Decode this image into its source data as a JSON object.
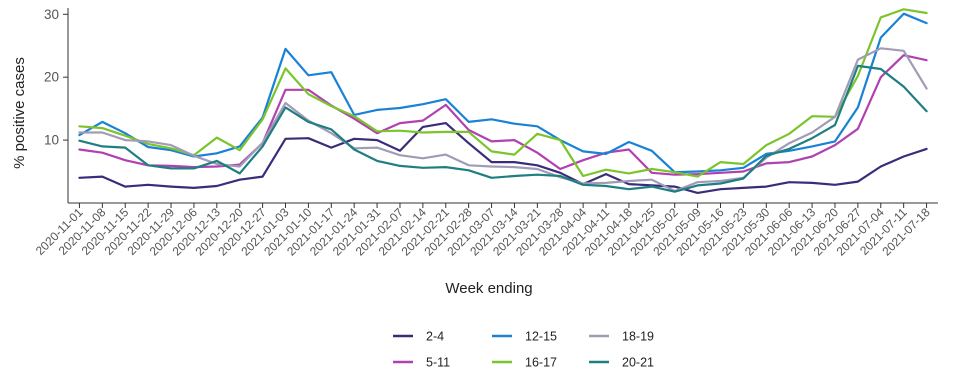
{
  "chart_data": {
    "type": "line",
    "xlabel": "Week ending",
    "ylabel": "% positive cases",
    "ylim": [
      0,
      31
    ],
    "yticks": [
      10,
      20,
      30
    ],
    "grid": false,
    "legend_position": "bottom",
    "categories": [
      "2020-11-01",
      "2020-11-08",
      "2020-11-15",
      "2020-11-22",
      "2020-11-29",
      "2020-12-06",
      "2020-12-13",
      "2020-12-20",
      "2020-12-27",
      "2021-01-03",
      "2021-01-10",
      "2021-01-17",
      "2021-01-24",
      "2021-01-31",
      "2021-02-07",
      "2021-02-14",
      "2021-02-21",
      "2021-02-28",
      "2021-03-07",
      "2021-03-14",
      "2021-03-21",
      "2021-03-28",
      "2021-04-04",
      "2021-04-11",
      "2021-04-18",
      "2021-04-25",
      "2021-05-02",
      "2021-05-09",
      "2021-05-16",
      "2021-05-23",
      "2021-05-30",
      "2021-06-06",
      "2021-06-13",
      "2021-06-20",
      "2021-06-27",
      "2021-07-04",
      "2021-07-11",
      "2021-07-18"
    ],
    "series": [
      {
        "name": "2-4",
        "color": "#3b2c7a",
        "values": [
          4.0,
          4.2,
          2.6,
          2.9,
          2.6,
          2.4,
          2.7,
          3.7,
          4.2,
          10.2,
          10.3,
          8.8,
          10.2,
          10.0,
          8.3,
          12.1,
          12.7,
          9.5,
          6.5,
          6.5,
          6.0,
          4.8,
          3.0,
          4.6,
          3.0,
          2.8,
          2.6,
          1.6,
          2.2,
          2.4,
          2.6,
          3.3,
          3.2,
          2.9,
          3.4,
          5.8,
          7.4,
          8.6
        ]
      },
      {
        "name": "5-11",
        "color": "#b141b0",
        "values": [
          8.5,
          8.0,
          6.8,
          6.0,
          5.9,
          5.7,
          5.8,
          6.1,
          9.5,
          18.0,
          18.0,
          15.5,
          13.4,
          11.1,
          12.7,
          13.1,
          15.6,
          11.6,
          9.8,
          10.0,
          8.0,
          5.4,
          6.8,
          8.0,
          8.5,
          4.8,
          4.5,
          4.6,
          4.8,
          5.0,
          6.3,
          6.5,
          7.4,
          9.2,
          11.8,
          20.0,
          23.5,
          22.7
        ]
      },
      {
        "name": "12-15",
        "color": "#1a82d6",
        "values": [
          10.8,
          12.9,
          11.1,
          8.9,
          8.4,
          7.4,
          7.9,
          9.0,
          13.6,
          24.5,
          20.3,
          20.8,
          14.0,
          14.8,
          15.1,
          15.7,
          16.5,
          12.9,
          13.3,
          12.6,
          12.2,
          10.0,
          8.2,
          7.8,
          9.7,
          8.3,
          4.9,
          5.0,
          5.2,
          5.6,
          7.8,
          8.3,
          9.0,
          9.8,
          15.2,
          26.3,
          30.1,
          28.6
        ]
      },
      {
        "name": "16-17",
        "color": "#7bc42c",
        "values": [
          12.2,
          11.9,
          10.7,
          9.4,
          8.7,
          7.6,
          10.4,
          8.4,
          13.3,
          21.4,
          17.3,
          15.4,
          13.8,
          11.4,
          11.5,
          11.2,
          11.3,
          11.3,
          8.2,
          7.7,
          11.0,
          10.0,
          4.3,
          5.3,
          4.7,
          5.4,
          4.9,
          4.2,
          6.5,
          6.2,
          9.2,
          11.0,
          13.8,
          13.7,
          20.2,
          29.5,
          30.8,
          30.2
        ]
      },
      {
        "name": "18-19",
        "color": "#a09cb7",
        "values": [
          11.2,
          11.2,
          10.0,
          9.8,
          9.2,
          7.5,
          6.2,
          5.8,
          9.6,
          15.9,
          13.1,
          11.1,
          8.7,
          8.8,
          7.6,
          7.1,
          7.7,
          6.0,
          5.8,
          5.7,
          5.4,
          4.1,
          3.1,
          3.2,
          3.5,
          3.7,
          1.9,
          3.3,
          3.5,
          4.0,
          7.2,
          9.5,
          11.2,
          13.7,
          22.8,
          24.6,
          24.2,
          18.2
        ]
      },
      {
        "name": "20-21",
        "color": "#1f7f80",
        "values": [
          9.9,
          9.0,
          8.8,
          6.0,
          5.5,
          5.5,
          6.7,
          4.7,
          9.0,
          15.2,
          12.9,
          11.7,
          8.5,
          6.7,
          5.9,
          5.6,
          5.7,
          5.2,
          4.0,
          4.3,
          4.5,
          4.3,
          2.9,
          2.7,
          2.2,
          2.6,
          1.8,
          2.8,
          3.1,
          3.9,
          7.5,
          8.6,
          10.3,
          12.4,
          21.8,
          21.3,
          18.5,
          14.6
        ]
      }
    ]
  }
}
